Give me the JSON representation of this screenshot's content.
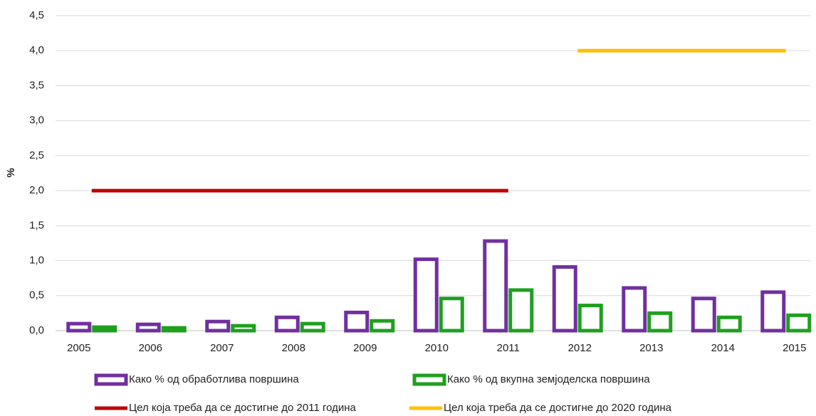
{
  "chart_data": {
    "type": "bar",
    "ylabel": "%",
    "categories": [
      "2005",
      "2006",
      "2007",
      "2008",
      "2009",
      "2010",
      "2011",
      "2012",
      "2013",
      "2014",
      "2015"
    ],
    "series": [
      {
        "name": "Како % од обработлива површина",
        "color": "#7030a0",
        "values": [
          0.1,
          0.09,
          0.13,
          0.19,
          0.26,
          1.02,
          1.28,
          0.91,
          0.61,
          0.46,
          0.55
        ]
      },
      {
        "name": "Како % од вкупна земјоделска површина",
        "color": "#1fa01f",
        "values": [
          0.05,
          0.04,
          0.07,
          0.1,
          0.14,
          0.46,
          0.58,
          0.36,
          0.25,
          0.19,
          0.22
        ]
      },
      {
        "name": "Цел која треба да се достигне до 2011 година",
        "color": "#c00000",
        "type": "line",
        "values": [
          2,
          2,
          2,
          2,
          2,
          2,
          2,
          null,
          null,
          null,
          null
        ]
      },
      {
        "name": "Цел која треба да се достигне до 2020 година",
        "color": "#ffc000",
        "type": "line",
        "values": [
          null,
          null,
          null,
          null,
          null,
          null,
          null,
          4,
          4,
          4,
          4
        ]
      }
    ],
    "ylim": [
      0,
      4.5
    ],
    "yticks": [
      {
        "value": 0,
        "label": "0,0"
      },
      {
        "value": 0.5,
        "label": "0,5"
      },
      {
        "value": 1,
        "label": "1,0"
      },
      {
        "value": 1.5,
        "label": "1,5"
      },
      {
        "value": 2,
        "label": "2,0"
      },
      {
        "value": 2.5,
        "label": "2,5"
      },
      {
        "value": 3,
        "label": "3,0"
      },
      {
        "value": 3.5,
        "label": "3,5"
      },
      {
        "value": 4,
        "label": "4,0"
      },
      {
        "value": 4.5,
        "label": "4,5"
      }
    ],
    "grid": true
  }
}
